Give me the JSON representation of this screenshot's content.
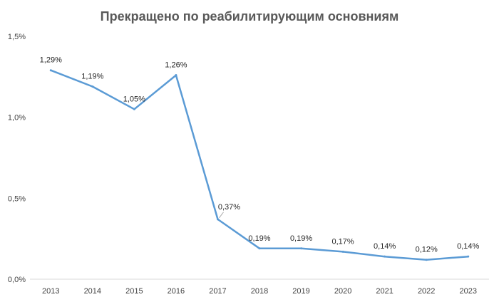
{
  "chart_data": {
    "type": "line",
    "title": "Прекращено по реабилитирующим основниям",
    "xlabel": "",
    "ylabel": "",
    "categories": [
      "2013",
      "2014",
      "2015",
      "2016",
      "2017",
      "2018",
      "2019",
      "2020",
      "2021",
      "2022",
      "2023"
    ],
    "series": [
      {
        "values": [
          1.29,
          1.19,
          1.05,
          1.26,
          0.37,
          0.19,
          0.19,
          0.17,
          0.14,
          0.12,
          0.14
        ],
        "labels": [
          "1,29%",
          "1,19%",
          "1,05%",
          "1,26%",
          "0,37%",
          "0,19%",
          "0,19%",
          "0,17%",
          "0,14%",
          "0,12%",
          "0,14%"
        ],
        "color": "#5B9BD5"
      }
    ],
    "ylim": [
      0,
      1.5
    ],
    "yticks": [
      {
        "value": 0,
        "label": "0,0%"
      },
      {
        "value": 0.5,
        "label": "0,5%"
      },
      {
        "value": 1.0,
        "label": "1,0%"
      },
      {
        "value": 1.5,
        "label": "1,5%"
      }
    ],
    "grid": false,
    "legend": "none"
  }
}
